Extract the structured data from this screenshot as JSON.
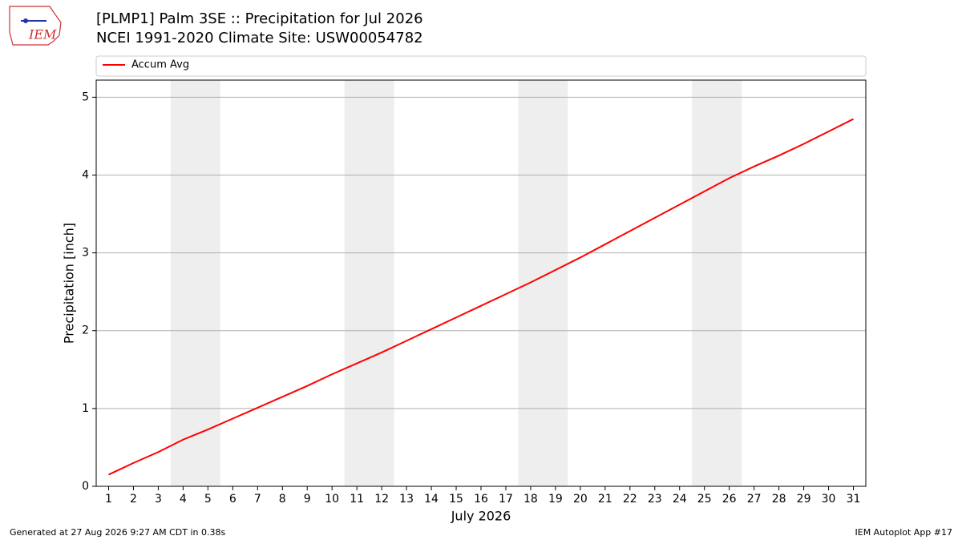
{
  "logo": "IEM",
  "footer": {
    "left": "Generated at 27 Aug 2026 9:27 AM CDT in 0.38s",
    "right": "IEM Autoplot App #17"
  },
  "chart_data": {
    "type": "line",
    "title": "[PLMP1] Palm 3SE :: Precipitation for Jul 2026",
    "subtitle": "NCEI 1991-2020 Climate Site: USW00054782",
    "x_label": "July 2026",
    "y_label": "Precipitation [inch]",
    "x": [
      1,
      2,
      3,
      4,
      5,
      6,
      7,
      8,
      9,
      10,
      11,
      12,
      13,
      14,
      15,
      16,
      17,
      18,
      19,
      20,
      21,
      22,
      23,
      24,
      25,
      26,
      27,
      28,
      29,
      30,
      31
    ],
    "series": [
      {
        "name": "Accum Avg",
        "color": "#ff0000",
        "values": [
          0.15,
          0.3,
          0.44,
          0.6,
          0.73,
          0.87,
          1.01,
          1.15,
          1.29,
          1.44,
          1.58,
          1.72,
          1.87,
          2.02,
          2.17,
          2.32,
          2.47,
          2.62,
          2.78,
          2.94,
          3.11,
          3.28,
          3.45,
          3.62,
          3.79,
          3.96,
          4.11,
          4.25,
          4.4,
          4.56,
          4.72
        ]
      }
    ],
    "xlim": [
      0.5,
      31.5
    ],
    "ylim": [
      0,
      5.22
    ],
    "xticks": [
      1,
      2,
      3,
      4,
      5,
      6,
      7,
      8,
      9,
      10,
      11,
      12,
      13,
      14,
      15,
      16,
      17,
      18,
      19,
      20,
      21,
      22,
      23,
      24,
      25,
      26,
      27,
      28,
      29,
      30,
      31
    ],
    "yticks": [
      0,
      1,
      2,
      3,
      4,
      5
    ],
    "grid": true,
    "legend": "top",
    "shaded_spans": [
      [
        3.5,
        5.5
      ],
      [
        10.5,
        12.5
      ],
      [
        17.5,
        19.5
      ],
      [
        24.5,
        26.5
      ]
    ],
    "shade_color": "#eeeeee"
  }
}
